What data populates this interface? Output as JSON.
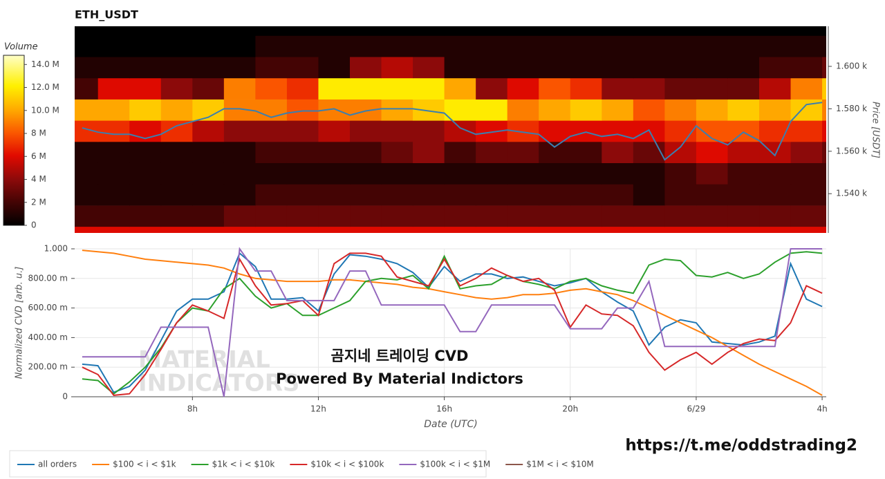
{
  "chart_data": [
    {
      "type": "heatmap",
      "title": "ETH_USDT",
      "y_label": "Price [USDT]",
      "colorbar_label": "Volume",
      "xlim": [
        4.26,
        28.13
      ],
      "ylim": [
        1521.5,
        1618.9
      ],
      "yticks": [
        {
          "value": 1540,
          "label": "1.540 k"
        },
        {
          "value": 1560,
          "label": "1.560 k"
        },
        {
          "value": 1580,
          "label": "1.580 k"
        },
        {
          "value": 1600,
          "label": "1.600 k"
        }
      ],
      "x_bins": [
        4,
        5,
        6,
        7,
        8,
        9,
        10,
        11,
        12,
        13,
        14,
        15,
        16,
        17,
        18,
        19,
        20,
        21,
        22,
        23,
        24,
        25,
        26,
        27,
        28,
        29
      ],
      "y_bins": [
        1514.5,
        1524.5,
        1534.5,
        1544.5,
        1554.5,
        1564.5,
        1574.5,
        1584.5,
        1594.5,
        1604.5,
        1614.5,
        1624.5
      ],
      "z": [
        [
          6,
          6,
          6,
          6,
          6,
          6,
          6,
          6,
          6,
          6,
          6,
          6,
          6,
          6,
          6,
          6,
          6,
          6,
          6,
          6,
          6,
          6,
          6,
          6,
          6
        ],
        [
          2,
          2,
          2,
          2,
          2,
          3,
          3,
          3,
          3,
          3,
          3,
          3,
          3,
          3,
          3,
          3,
          3,
          3,
          3,
          3,
          3,
          3,
          3,
          3,
          3
        ],
        [
          1,
          1,
          1,
          1,
          1,
          1,
          2,
          2,
          2,
          2,
          2,
          2,
          2,
          2,
          2,
          2,
          2,
          2,
          1,
          2,
          2,
          2,
          2,
          2,
          2
        ],
        [
          1,
          1,
          1,
          1,
          1,
          1,
          1,
          1,
          1,
          1,
          1,
          1,
          1,
          1,
          1,
          1,
          1,
          1,
          1,
          2,
          3,
          2,
          2,
          2,
          2
        ],
        [
          1,
          1,
          1,
          1,
          1,
          1,
          2,
          2,
          2,
          2,
          3,
          4,
          2,
          3,
          3,
          2,
          2,
          4,
          3,
          5,
          6,
          5,
          5,
          4,
          3
        ],
        [
          7,
          7,
          6,
          7,
          5,
          4,
          4,
          4,
          5,
          4,
          4,
          4,
          5,
          6,
          7,
          6,
          6,
          6,
          6,
          7,
          8,
          8,
          7,
          7,
          6
        ],
        [
          10,
          10,
          11,
          10,
          11,
          9,
          9,
          8,
          9,
          9,
          10,
          11,
          12,
          12,
          9,
          10,
          11,
          10,
          8,
          9,
          10,
          11,
          10,
          11,
          9
        ],
        [
          2,
          6,
          6,
          4,
          3,
          9,
          8,
          7,
          12,
          12,
          12,
          12,
          10,
          4,
          6,
          8,
          7,
          4,
          4,
          3,
          3,
          3,
          5,
          9,
          11
        ],
        [
          1,
          1,
          1,
          1,
          1,
          1,
          2,
          2,
          1,
          4,
          5,
          4,
          1,
          1,
          1,
          1,
          1,
          1,
          1,
          1,
          1,
          1,
          2,
          2,
          3
        ],
        [
          0,
          0,
          0,
          0,
          0,
          0,
          1,
          1,
          1,
          1,
          1,
          1,
          1,
          1,
          1,
          1,
          1,
          1,
          1,
          1,
          1,
          1,
          1,
          1,
          1
        ],
        [
          0,
          0,
          0,
          0,
          0,
          0,
          0,
          0,
          0,
          0,
          0,
          0,
          0,
          0,
          0,
          0,
          0,
          0,
          0,
          0,
          0,
          0,
          0,
          0,
          0
        ]
      ],
      "zlim": [
        0,
        14.8
      ],
      "zticks": [
        0,
        {
          "value": 2,
          "label": "2 M"
        },
        {
          "value": 4,
          "label": "4 M"
        },
        {
          "value": 6,
          "label": "6 M"
        },
        {
          "value": 8,
          "label": "8 M"
        },
        {
          "value": 10,
          "label": "10.0 M"
        },
        {
          "value": 12,
          "label": "12.0 M"
        },
        {
          "value": 14,
          "label": "14.0 M"
        }
      ],
      "x": [
        4.5,
        5,
        5.5,
        6,
        6.5,
        7,
        7.5,
        8,
        8.5,
        9,
        9.5,
        10,
        10.5,
        11,
        11.5,
        12,
        12.5,
        13,
        13.5,
        14,
        14.5,
        15,
        15.5,
        16,
        16.5,
        17,
        17.5,
        18,
        18.5,
        19,
        19.5,
        20,
        20.5,
        21,
        21.5,
        22,
        22.5,
        23,
        23.5,
        24,
        24.5,
        25,
        25.5,
        26,
        26.5,
        27,
        27.5,
        28
      ],
      "line": {
        "color": "#3a7fb0",
        "values": [
          1571,
          1569,
          1568,
          1568,
          1566,
          1568,
          1572,
          1574,
          1576,
          1580,
          1580,
          1579,
          1576,
          1578,
          1579,
          1579,
          1580,
          1577,
          1579,
          1580,
          1580,
          1580,
          1579,
          1578,
          1571,
          1568,
          1569,
          1570,
          1569,
          1568,
          1562,
          1567,
          1569,
          1567,
          1568,
          1566,
          1570,
          1556,
          1562,
          1572,
          1566,
          1563,
          1569,
          1565,
          1558,
          1574,
          1582,
          1583
        ]
      }
    },
    {
      "type": "line",
      "x_label": "Date (UTC)",
      "y_label": "Normalized CVD [arb. u.]",
      "xlim": [
        4.26,
        28.13
      ],
      "ylim": [
        0,
        1
      ],
      "xticks": [
        {
          "value": 8,
          "label": "8h"
        },
        {
          "value": 12,
          "label": "12h"
        },
        {
          "value": 16,
          "label": "16h"
        },
        {
          "value": 20,
          "label": "20h"
        },
        {
          "value": 24,
          "label": "6/29"
        },
        {
          "value": 28,
          "label": "4h"
        }
      ],
      "yticks": [
        0,
        {
          "value": 0.2,
          "label": "200.00 m"
        },
        {
          "value": 0.4,
          "label": "400.00 m"
        },
        {
          "value": 0.6,
          "label": "600.00 m"
        },
        {
          "value": 0.8,
          "label": "800.00 m"
        },
        {
          "value": 1,
          "label": "1.000"
        }
      ],
      "grid": true,
      "legend": "bottom",
      "x": [
        4.5,
        5,
        5.5,
        6,
        6.5,
        7,
        7.5,
        8,
        8.5,
        9,
        9.5,
        10,
        10.5,
        11,
        11.5,
        12,
        12.5,
        13,
        13.5,
        14,
        14.5,
        15,
        15.5,
        16,
        16.5,
        17,
        17.5,
        18,
        18.5,
        19,
        19.5,
        20,
        20.5,
        21,
        21.5,
        22,
        22.5,
        23,
        23.5,
        24,
        24.5,
        25,
        25.5,
        26,
        26.5,
        27,
        27.5,
        28
      ],
      "series": [
        {
          "name": "all orders",
          "color": "#1f77b4",
          "values": [
            0.22,
            0.21,
            0.03,
            0.07,
            0.18,
            0.38,
            0.58,
            0.66,
            0.66,
            0.71,
            0.97,
            0.88,
            0.66,
            0.66,
            0.67,
            0.58,
            0.83,
            0.96,
            0.95,
            0.93,
            0.9,
            0.84,
            0.74,
            0.88,
            0.78,
            0.83,
            0.83,
            0.8,
            0.81,
            0.78,
            0.75,
            0.77,
            0.8,
            0.71,
            0.64,
            0.58,
            0.35,
            0.47,
            0.52,
            0.5,
            0.37,
            0.36,
            0.35,
            0.37,
            0.41,
            0.9,
            0.66,
            0.61
          ]
        },
        {
          "name": "$100 < i < $1k",
          "color": "#ff7f0e",
          "values": [
            0.99,
            0.98,
            0.97,
            0.95,
            0.93,
            0.92,
            0.91,
            0.9,
            0.89,
            0.87,
            0.83,
            0.8,
            0.79,
            0.78,
            0.78,
            0.78,
            0.79,
            0.79,
            0.78,
            0.77,
            0.76,
            0.74,
            0.73,
            0.71,
            0.69,
            0.67,
            0.66,
            0.67,
            0.69,
            0.69,
            0.7,
            0.72,
            0.73,
            0.71,
            0.69,
            0.65,
            0.6,
            0.55,
            0.5,
            0.45,
            0.4,
            0.34,
            0.28,
            0.22,
            0.17,
            0.12,
            0.07,
            0.01
          ]
        },
        {
          "name": "$1k < i < $10k",
          "color": "#2ca02c",
          "values": [
            0.12,
            0.11,
            0.02,
            0.1,
            0.2,
            0.33,
            0.5,
            0.6,
            0.58,
            0.73,
            0.8,
            0.68,
            0.6,
            0.63,
            0.55,
            0.55,
            0.6,
            0.65,
            0.78,
            0.8,
            0.79,
            0.82,
            0.73,
            0.95,
            0.73,
            0.75,
            0.76,
            0.82,
            0.78,
            0.76,
            0.73,
            0.78,
            0.8,
            0.75,
            0.72,
            0.7,
            0.89,
            0.93,
            0.92,
            0.82,
            0.81,
            0.84,
            0.8,
            0.83,
            0.91,
            0.97,
            0.98,
            0.97
          ]
        },
        {
          "name": "$10k < i < $100k",
          "color": "#d62728",
          "values": [
            0.2,
            0.15,
            0.01,
            0.02,
            0.15,
            0.32,
            0.5,
            0.62,
            0.58,
            0.53,
            0.93,
            0.75,
            0.62,
            0.63,
            0.65,
            0.55,
            0.9,
            0.97,
            0.97,
            0.95,
            0.81,
            0.78,
            0.75,
            0.93,
            0.75,
            0.8,
            0.87,
            0.82,
            0.78,
            0.8,
            0.72,
            0.47,
            0.62,
            0.56,
            0.55,
            0.48,
            0.3,
            0.18,
            0.25,
            0.3,
            0.22,
            0.3,
            0.36,
            0.39,
            0.38,
            0.5,
            0.75,
            0.7
          ]
        },
        {
          "name": "$100k < i < $1M",
          "color": "#9467bd",
          "values": [
            0.27,
            0.27,
            0.27,
            0.27,
            0.27,
            0.47,
            0.47,
            0.47,
            0.47,
            0,
            1,
            0.85,
            0.85,
            0.65,
            0.65,
            0.65,
            0.65,
            0.85,
            0.85,
            0.62,
            0.62,
            0.62,
            0.62,
            0.62,
            0.44,
            0.44,
            0.62,
            0.62,
            0.62,
            0.62,
            0.62,
            0.46,
            0.46,
            0.46,
            0.6,
            0.6,
            0.78,
            0.34,
            0.34,
            0.34,
            0.34,
            0.34,
            0.34,
            0.34,
            0.34,
            1,
            1,
            1
          ]
        },
        {
          "name": "$1M < i < $10M",
          "color": "#8c564b",
          "values": [
            null,
            null,
            null,
            null,
            null,
            null,
            null,
            null,
            null,
            null,
            null,
            null,
            null,
            null,
            null,
            null,
            null,
            null,
            null,
            null,
            null,
            null,
            null,
            null,
            null,
            null,
            null,
            null,
            null,
            null,
            null,
            null,
            null,
            null,
            null,
            null,
            null,
            null,
            null,
            null,
            null,
            null,
            null,
            null,
            null,
            null,
            null,
            null
          ]
        }
      ],
      "watermark": [
        "MATERIAL",
        "INDICATORS"
      ],
      "annotations": [
        "곰지네 트레이딩 CVD",
        "Powered By Material Indictors"
      ]
    }
  ],
  "footer_link": "https://t.me/oddstrading2"
}
